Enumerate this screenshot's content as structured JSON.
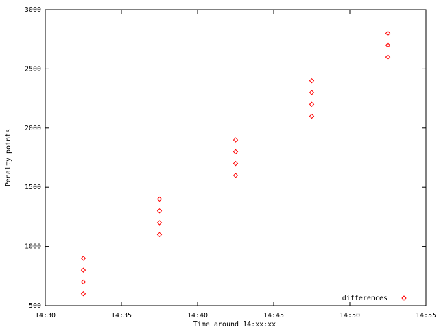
{
  "chart_data": {
    "type": "scatter",
    "x_label": "Time around 14:xx:xx",
    "y_label": "Penalty points",
    "x": [
      32.5,
      32.5,
      32.5,
      32.5,
      37.5,
      37.5,
      37.5,
      37.5,
      42.5,
      42.5,
      42.5,
      42.5,
      47.5,
      47.5,
      47.5,
      47.5,
      52.5,
      52.5,
      52.5
    ],
    "series": [
      {
        "name": "differences",
        "color": "#ff0000",
        "values": [
          600,
          700,
          800,
          900,
          1100,
          1200,
          1300,
          1400,
          1600,
          1700,
          1800,
          1900,
          2100,
          2200,
          2300,
          2400,
          2600,
          2700,
          2800
        ]
      }
    ],
    "xlim": [
      30,
      55
    ],
    "xticks": [
      {
        "value": 30,
        "label": "14:30"
      },
      {
        "value": 35,
        "label": "14:35"
      },
      {
        "value": 40,
        "label": "14:40"
      },
      {
        "value": 45,
        "label": "14:45"
      },
      {
        "value": 50,
        "label": "14:50"
      },
      {
        "value": 55,
        "label": "14:55"
      }
    ],
    "ylim": [
      500,
      3000
    ],
    "yticks": [
      500,
      1000,
      1500,
      2000,
      2500,
      3000
    ],
    "grid": false,
    "legend": "bottom-right"
  }
}
